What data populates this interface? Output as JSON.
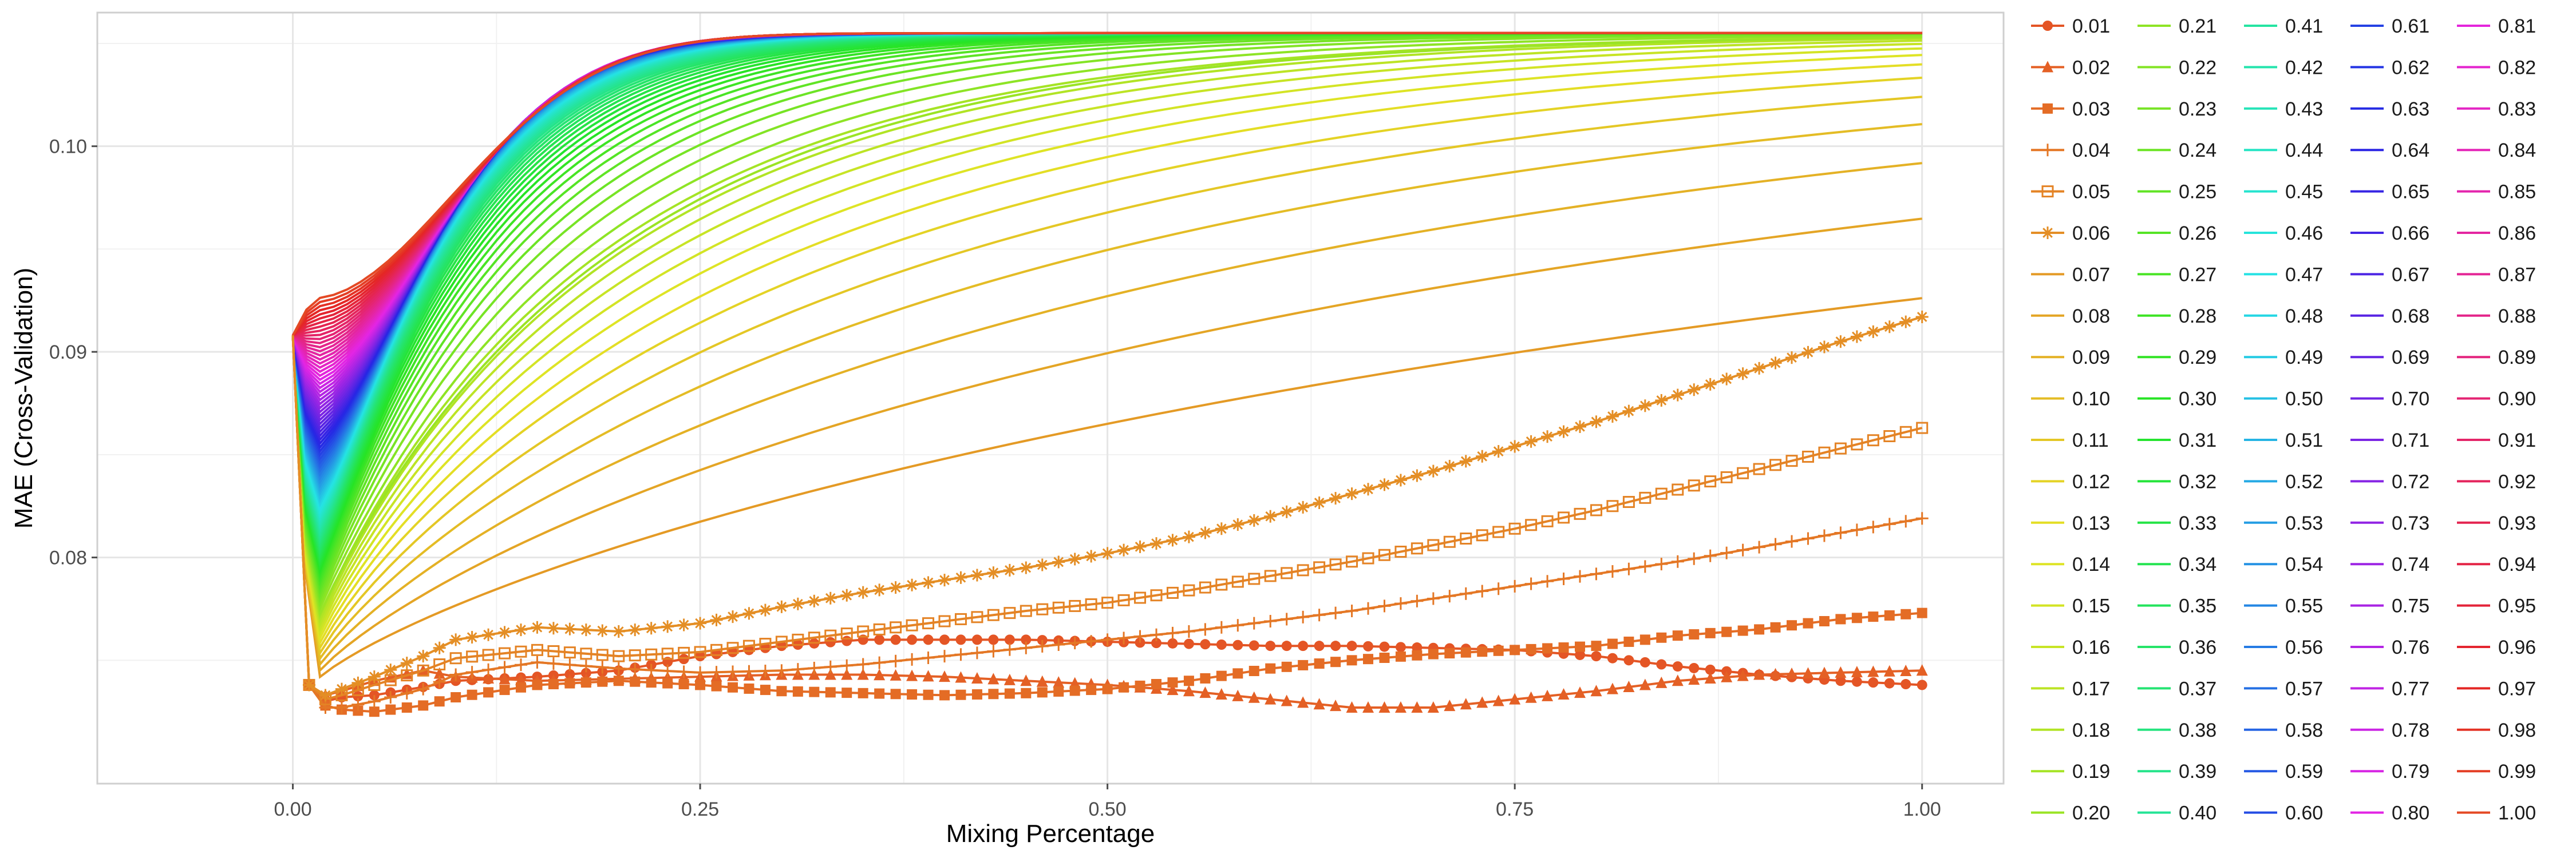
{
  "chart_data": {
    "type": "line",
    "title": "",
    "xlabel": "Mixing Percentage",
    "ylabel": "MAE (Cross-Validation)",
    "xlim": [
      -0.12,
      1.05
    ],
    "ylim": [
      0.069,
      0.1065
    ],
    "x_ticks": [
      0.0,
      0.25,
      0.5,
      0.75,
      1.0
    ],
    "x_tick_labels": [
      "0.00",
      "0.25",
      "0.50",
      "0.75",
      "1.00"
    ],
    "y_ticks": [
      0.08,
      0.09,
      0.1
    ],
    "y_tick_labels": [
      "0.08",
      "0.09",
      "0.10"
    ],
    "grid": true,
    "legend_position": "right",
    "legend_columns": 5,
    "series_start_value": 0.0908,
    "series_cap_value": 0.1055,
    "series_names": [
      "0.01",
      "0.02",
      "0.03",
      "0.04",
      "0.05",
      "0.06",
      "0.07",
      "0.08",
      "0.09",
      "0.10",
      "0.11",
      "0.12",
      "0.13",
      "0.14",
      "0.15",
      "0.16",
      "0.17",
      "0.18",
      "0.19",
      "0.20",
      "0.21",
      "0.22",
      "0.23",
      "0.24",
      "0.25",
      "0.26",
      "0.27",
      "0.28",
      "0.29",
      "0.30",
      "0.31",
      "0.32",
      "0.33",
      "0.34",
      "0.35",
      "0.36",
      "0.37",
      "0.38",
      "0.39",
      "0.40",
      "0.41",
      "0.42",
      "0.43",
      "0.44",
      "0.45",
      "0.46",
      "0.47",
      "0.48",
      "0.49",
      "0.50",
      "0.51",
      "0.52",
      "0.53",
      "0.54",
      "0.55",
      "0.56",
      "0.57",
      "0.58",
      "0.59",
      "0.60",
      "0.61",
      "0.62",
      "0.63",
      "0.64",
      "0.65",
      "0.66",
      "0.67",
      "0.68",
      "0.69",
      "0.70",
      "0.71",
      "0.72",
      "0.73",
      "0.74",
      "0.75",
      "0.76",
      "0.77",
      "0.78",
      "0.79",
      "0.80",
      "0.81",
      "0.82",
      "0.83",
      "0.84",
      "0.85",
      "0.86",
      "0.87",
      "0.88",
      "0.89",
      "0.90",
      "0.91",
      "0.92",
      "0.93",
      "0.94",
      "0.95",
      "0.96",
      "0.97",
      "0.98",
      "0.99",
      "1.00"
    ],
    "marked_series": [
      {
        "name": "0.01",
        "marker": "circle",
        "x": [
          0.0,
          0.01,
          0.02,
          0.03,
          0.05,
          0.08,
          0.1,
          0.15,
          0.2,
          0.25,
          0.3,
          0.35,
          0.4,
          0.45,
          0.5,
          0.55,
          0.6,
          0.65,
          0.7,
          0.75,
          0.8,
          0.85,
          0.9,
          0.95,
          1.0
        ],
        "y": [
          0.0908,
          0.0738,
          0.073,
          0.0732,
          0.0733,
          0.0737,
          0.074,
          0.0742,
          0.0745,
          0.0752,
          0.0757,
          0.076,
          0.076,
          0.076,
          0.0759,
          0.0758,
          0.0757,
          0.0757,
          0.0756,
          0.0755,
          0.0752,
          0.0747,
          0.0743,
          0.074,
          0.0738
        ]
      },
      {
        "name": "0.02",
        "marker": "triangle",
        "x": [
          0.0,
          0.01,
          0.02,
          0.03,
          0.05,
          0.08,
          0.1,
          0.15,
          0.2,
          0.25,
          0.3,
          0.35,
          0.4,
          0.45,
          0.5,
          0.55,
          0.6,
          0.65,
          0.7,
          0.75,
          0.8,
          0.85,
          0.9,
          0.95,
          1.0
        ],
        "y": [
          0.0908,
          0.0738,
          0.0733,
          0.0735,
          0.074,
          0.0745,
          0.0742,
          0.074,
          0.0741,
          0.0742,
          0.0743,
          0.0743,
          0.0742,
          0.074,
          0.0738,
          0.0735,
          0.0731,
          0.0727,
          0.0727,
          0.0731,
          0.0735,
          0.074,
          0.0743,
          0.0744,
          0.0745
        ]
      },
      {
        "name": "0.03",
        "marker": "square",
        "x": [
          0.0,
          0.01,
          0.02,
          0.03,
          0.05,
          0.08,
          0.1,
          0.15,
          0.2,
          0.25,
          0.3,
          0.35,
          0.4,
          0.45,
          0.5,
          0.55,
          0.6,
          0.65,
          0.7,
          0.75,
          0.8,
          0.85,
          0.9,
          0.95,
          1.0
        ],
        "y": [
          0.0908,
          0.0738,
          0.0728,
          0.0726,
          0.0725,
          0.0728,
          0.0732,
          0.0738,
          0.074,
          0.0738,
          0.0735,
          0.0734,
          0.0733,
          0.0734,
          0.0736,
          0.074,
          0.0746,
          0.075,
          0.0753,
          0.0755,
          0.0757,
          0.0762,
          0.0765,
          0.077,
          0.0773
        ]
      },
      {
        "name": "0.04",
        "marker": "plus",
        "x": [
          0.0,
          0.01,
          0.02,
          0.03,
          0.05,
          0.08,
          0.1,
          0.15,
          0.2,
          0.25,
          0.3,
          0.35,
          0.4,
          0.45,
          0.5,
          0.55,
          0.6,
          0.65,
          0.7,
          0.75,
          0.8,
          0.85,
          0.9,
          0.95,
          1.0
        ],
        "y": [
          0.0908,
          0.0738,
          0.0727,
          0.0727,
          0.073,
          0.0736,
          0.0743,
          0.0749,
          0.0746,
          0.0744,
          0.0745,
          0.0748,
          0.0752,
          0.0756,
          0.076,
          0.0764,
          0.0769,
          0.0774,
          0.078,
          0.0786,
          0.0792,
          0.0798,
          0.0805,
          0.0812,
          0.0819
        ]
      },
      {
        "name": "0.05",
        "marker": "square-open",
        "x": [
          0.0,
          0.01,
          0.02,
          0.03,
          0.05,
          0.08,
          0.1,
          0.15,
          0.2,
          0.25,
          0.3,
          0.35,
          0.4,
          0.45,
          0.5,
          0.55,
          0.6,
          0.65,
          0.7,
          0.75,
          0.8,
          0.85,
          0.9,
          0.95,
          1.0
        ],
        "y": [
          0.0908,
          0.0738,
          0.0731,
          0.0733,
          0.0738,
          0.0745,
          0.0751,
          0.0755,
          0.0752,
          0.0754,
          0.0759,
          0.0764,
          0.0769,
          0.0774,
          0.0778,
          0.0784,
          0.0791,
          0.0798,
          0.0806,
          0.0814,
          0.0823,
          0.0833,
          0.0843,
          0.0853,
          0.0863
        ]
      },
      {
        "name": "0.06",
        "marker": "asterisk",
        "x": [
          0.0,
          0.01,
          0.02,
          0.03,
          0.05,
          0.08,
          0.1,
          0.15,
          0.2,
          0.25,
          0.3,
          0.35,
          0.4,
          0.45,
          0.5,
          0.55,
          0.6,
          0.65,
          0.7,
          0.75,
          0.8,
          0.85,
          0.9,
          0.95,
          1.0
        ],
        "y": [
          0.0908,
          0.0738,
          0.0733,
          0.0736,
          0.0742,
          0.0752,
          0.076,
          0.0766,
          0.0764,
          0.0768,
          0.0776,
          0.0783,
          0.0789,
          0.0795,
          0.0802,
          0.081,
          0.082,
          0.0831,
          0.0842,
          0.0854,
          0.0866,
          0.0879,
          0.0892,
          0.0905,
          0.0917
        ]
      }
    ]
  }
}
